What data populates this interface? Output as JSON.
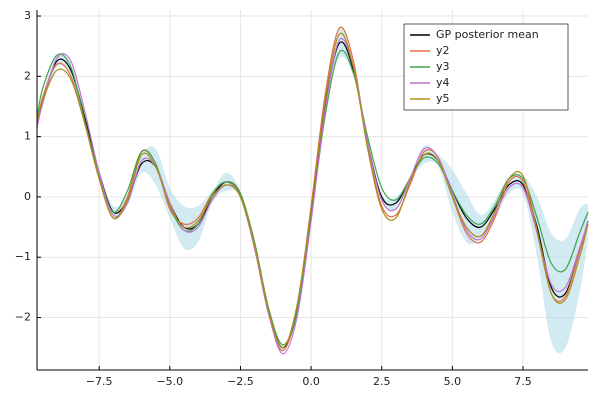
{
  "chart_data": {
    "type": "line",
    "x": [
      -9.7,
      -9.5,
      -9.0,
      -8.5,
      -8.0,
      -7.5,
      -7.0,
      -6.5,
      -6.0,
      -5.5,
      -5.0,
      -4.5,
      -4.0,
      -3.5,
      -3.0,
      -2.5,
      -2.0,
      -1.5,
      -1.0,
      -0.5,
      0.0,
      0.5,
      1.0,
      1.5,
      2.0,
      2.5,
      3.0,
      3.5,
      4.0,
      4.5,
      5.0,
      5.5,
      6.0,
      6.5,
      7.0,
      7.5,
      8.0,
      8.5,
      9.0,
      9.5,
      9.8
    ],
    "ribbon": {
      "color": "#add8e6",
      "lower": [
        1.1,
        1.5,
        2.15,
        2.0,
        1.25,
        0.35,
        -0.35,
        -0.15,
        0.4,
        0.2,
        -0.35,
        -0.85,
        -0.75,
        -0.1,
        0.1,
        0.0,
        -0.85,
        -1.95,
        -2.55,
        -1.95,
        -0.35,
        1.45,
        2.3,
        2.0,
        0.85,
        -0.05,
        -0.2,
        0.25,
        0.55,
        0.5,
        -0.25,
        -0.75,
        -0.7,
        -0.35,
        0.05,
        0.05,
        -1.0,
        -2.4,
        -2.5,
        -1.6,
        -0.7
      ],
      "upper": [
        1.3,
        1.7,
        2.35,
        2.2,
        1.35,
        0.45,
        -0.15,
        0.05,
        0.7,
        0.8,
        0.15,
        -0.15,
        -0.15,
        0.1,
        0.4,
        0.1,
        -0.75,
        -1.85,
        -2.45,
        -1.85,
        -0.25,
        1.55,
        2.8,
        2.2,
        0.95,
        0.05,
        0.0,
        0.35,
        0.85,
        0.7,
        0.45,
        0.05,
        -0.3,
        -0.05,
        0.35,
        0.35,
        0.0,
        -0.6,
        -0.7,
        -0.2,
        -0.1
      ]
    },
    "series": [
      {
        "name": "GP posterior mean",
        "color": "#000000",
        "values": [
          1.2,
          1.6,
          2.25,
          2.1,
          1.3,
          0.4,
          -0.25,
          -0.05,
          0.55,
          0.5,
          -0.1,
          -0.5,
          -0.45,
          0.0,
          0.25,
          0.05,
          -0.8,
          -1.9,
          -2.5,
          -1.9,
          -0.3,
          1.5,
          2.55,
          2.1,
          0.9,
          0.0,
          -0.1,
          0.3,
          0.7,
          0.6,
          0.1,
          -0.35,
          -0.5,
          -0.2,
          0.2,
          0.2,
          -0.5,
          -1.5,
          -1.6,
          -0.9,
          -0.4
        ]
      },
      {
        "name": "y2",
        "color": "#e26f46",
        "values": [
          1.2,
          1.65,
          2.2,
          2.0,
          1.2,
          0.3,
          -0.35,
          0.0,
          0.75,
          0.55,
          -0.2,
          -0.45,
          -0.35,
          0.05,
          0.25,
          0.0,
          -0.85,
          -1.95,
          -2.55,
          -1.85,
          -0.15,
          1.7,
          2.8,
          2.25,
          0.85,
          -0.15,
          -0.3,
          0.2,
          0.75,
          0.65,
          0.0,
          -0.6,
          -0.75,
          -0.35,
          0.25,
          0.25,
          -0.6,
          -1.6,
          -1.65,
          -0.9,
          -0.45
        ]
      },
      {
        "name": "y3",
        "color": "#3da44d",
        "values": [
          1.3,
          1.8,
          2.35,
          2.15,
          1.25,
          0.35,
          -0.25,
          0.1,
          0.75,
          0.55,
          -0.15,
          -0.55,
          -0.45,
          0.05,
          0.25,
          0.05,
          -0.75,
          -1.85,
          -2.45,
          -1.9,
          -0.35,
          1.35,
          2.4,
          2.05,
          1.0,
          0.15,
          -0.05,
          0.3,
          0.65,
          0.55,
          0.1,
          -0.3,
          -0.45,
          -0.15,
          0.3,
          0.3,
          -0.35,
          -1.1,
          -1.2,
          -0.6,
          -0.25
        ]
      },
      {
        "name": "y4",
        "color": "#c271d2",
        "values": [
          1.15,
          1.55,
          2.3,
          2.25,
          1.4,
          0.4,
          -0.3,
          -0.1,
          0.6,
          0.5,
          -0.1,
          -0.55,
          -0.5,
          -0.05,
          0.2,
          0.0,
          -0.85,
          -1.95,
          -2.6,
          -2.0,
          -0.4,
          1.45,
          2.6,
          2.15,
          0.9,
          -0.05,
          -0.2,
          0.3,
          0.8,
          0.65,
          0.05,
          -0.55,
          -0.7,
          -0.3,
          0.15,
          0.15,
          -0.6,
          -1.45,
          -1.5,
          -0.85,
          -0.4
        ]
      },
      {
        "name": "y5",
        "color": "#ac8d18",
        "values": [
          1.25,
          1.6,
          2.1,
          1.95,
          1.2,
          0.3,
          -0.35,
          -0.05,
          0.7,
          0.5,
          -0.15,
          -0.5,
          -0.4,
          0.0,
          0.2,
          0.0,
          -0.8,
          -1.9,
          -2.5,
          -1.8,
          -0.2,
          1.6,
          2.7,
          2.15,
          0.8,
          -0.2,
          -0.35,
          0.25,
          0.7,
          0.6,
          0.0,
          -0.5,
          -0.65,
          -0.25,
          0.3,
          0.35,
          -0.55,
          -1.6,
          -1.7,
          -1.0,
          -0.45
        ]
      }
    ],
    "xlim": [
      -9.7,
      9.8
    ],
    "ylim": [
      -2.87,
      3.1
    ],
    "xticks": [
      {
        "value": -7.5,
        "label": "−7.5"
      },
      {
        "value": -5.0,
        "label": "−5.0"
      },
      {
        "value": -2.5,
        "label": "−2.5"
      },
      {
        "value": 0.0,
        "label": "0.0"
      },
      2.5,
      {
        "value": 5.0,
        "label": "5.0"
      },
      7.5
    ],
    "yticks": [
      {
        "value": -2,
        "label": "−2"
      },
      {
        "value": -1,
        "label": "−1"
      },
      0,
      1,
      2,
      3
    ],
    "grid": true,
    "legend": "top-right"
  }
}
